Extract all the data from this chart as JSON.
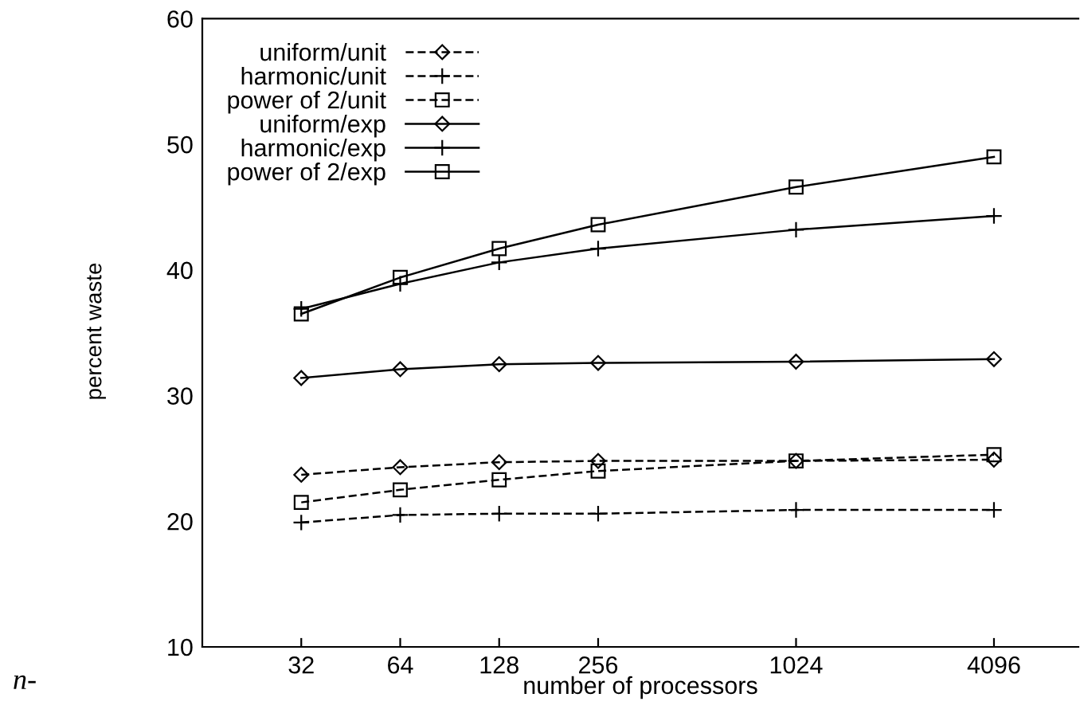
{
  "chart_data": {
    "type": "line",
    "xlabel": "number of processors",
    "ylabel": "percent waste",
    "x": [
      32,
      64,
      128,
      256,
      1024,
      4096
    ],
    "log": "x",
    "xlim": [
      16,
      7400
    ],
    "xticks": [
      32,
      64,
      128,
      256,
      1024,
      4096
    ],
    "ylim": [
      10,
      60
    ],
    "yticks": [
      10,
      20,
      30,
      40,
      50,
      60
    ],
    "grid": false,
    "legend": "top left",
    "annotations": [
      "n-"
    ],
    "series": [
      {
        "name": "uniform/unit",
        "color": "#000000",
        "marker": "diamond",
        "line_style": "dashed",
        "values": [
          23.7,
          24.3,
          24.7,
          24.8,
          24.8,
          24.9
        ]
      },
      {
        "name": "harmonic/unit",
        "color": "#000000",
        "marker": "cross",
        "line_style": "dashed",
        "values": [
          19.9,
          20.5,
          20.6,
          20.6,
          20.9,
          20.9
        ]
      },
      {
        "name": "power of 2/unit",
        "color": "#000000",
        "marker": "square",
        "line_style": "dashed",
        "values": [
          21.5,
          22.5,
          23.3,
          24.0,
          24.8,
          25.3
        ]
      },
      {
        "name": "uniform/exp",
        "color": "#000000",
        "marker": "diamond",
        "line_style": "solid",
        "values": [
          31.4,
          32.1,
          32.5,
          32.6,
          32.7,
          32.9
        ]
      },
      {
        "name": "harmonic/exp",
        "color": "#000000",
        "marker": "cross",
        "line_style": "solid",
        "values": [
          36.9,
          38.9,
          40.6,
          41.7,
          43.2,
          44.3
        ]
      },
      {
        "name": "power of 2/exp",
        "color": "#000000",
        "marker": "square",
        "line_style": "solid",
        "values": [
          36.5,
          39.4,
          41.7,
          43.6,
          46.6,
          49.0
        ]
      }
    ]
  }
}
